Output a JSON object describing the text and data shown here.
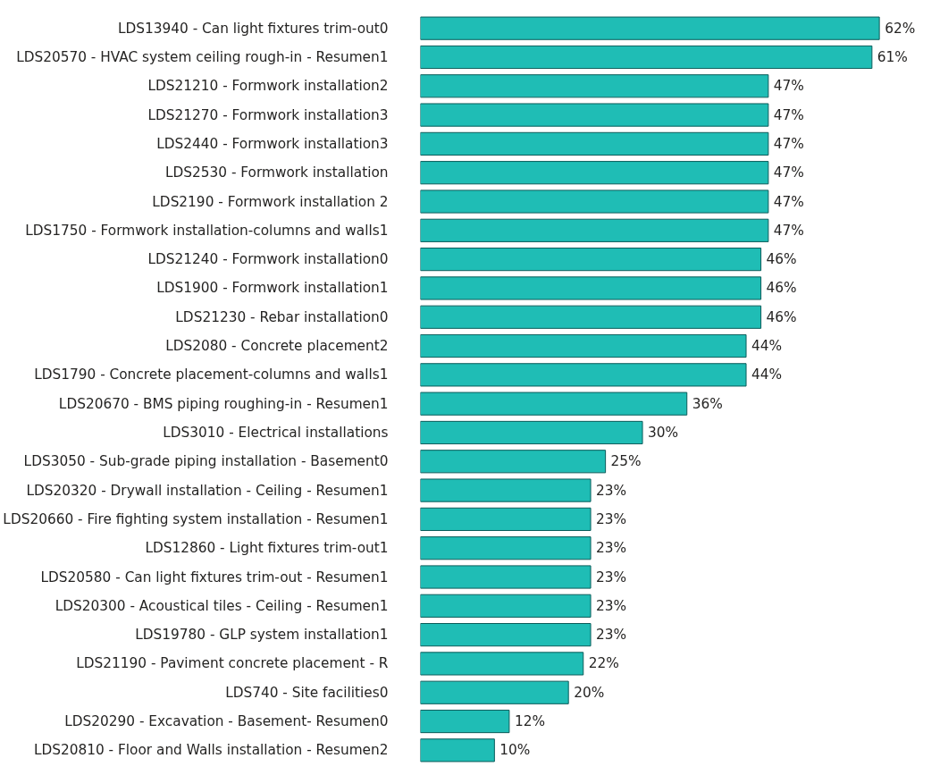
{
  "chart_data": {
    "type": "bar",
    "orientation": "horizontal",
    "categories": [
      "LDS13940 - Can light fixtures trim-out0",
      "LDS20570 - HVAC system ceiling rough-in - Resumen1",
      "LDS21210 - Formwork installation2",
      "LDS21270 - Formwork installation3",
      "LDS2440 - Formwork installation3",
      "LDS2530 - Formwork installation",
      "LDS2190 - Formwork installation 2",
      "LDS1750 - Formwork installation-columns and walls1",
      "LDS21240 - Formwork installation0",
      "LDS1900 - Formwork installation1",
      "LDS21230 - Rebar installation0",
      "LDS2080 - Concrete placement2",
      "LDS1790 - Concrete placement-columns and walls1",
      "LDS20670 - BMS piping roughing-in - Resumen1",
      "LDS3010 - Electrical installations",
      "LDS3050 - Sub-grade piping installation - Basement0",
      "LDS20320 - Drywall installation - Ceiling - Resumen1",
      "LDS20660 - Fire fighting system installation - Resumen1",
      "LDS12860 - Light fixtures trim-out1",
      "LDS20580 - Can light fixtures trim-out - Resumen1",
      "LDS20300 - Acoustical tiles - Ceiling - Resumen1",
      "LDS19780 - GLP system installation1",
      "LDS21190 - Paviment concrete placement - R",
      "LDS740 - Site facilities0",
      "LDS20290 - Excavation - Basement- Resumen0",
      "LDS20810 - Floor and Walls installation - Resumen2"
    ],
    "values": [
      62,
      61,
      47,
      47,
      47,
      47,
      47,
      47,
      46,
      46,
      46,
      44,
      44,
      36,
      30,
      25,
      23,
      23,
      23,
      23,
      23,
      23,
      22,
      20,
      12,
      10
    ],
    "value_labels": [
      "62%",
      "61%",
      "47%",
      "47%",
      "47%",
      "47%",
      "47%",
      "47%",
      "46%",
      "46%",
      "46%",
      "44%",
      "44%",
      "36%",
      "30%",
      "25%",
      "23%",
      "23%",
      "23%",
      "23%",
      "23%",
      "23%",
      "22%",
      "20%",
      "12%",
      "10%"
    ],
    "color": "#1fbdb5"
  }
}
